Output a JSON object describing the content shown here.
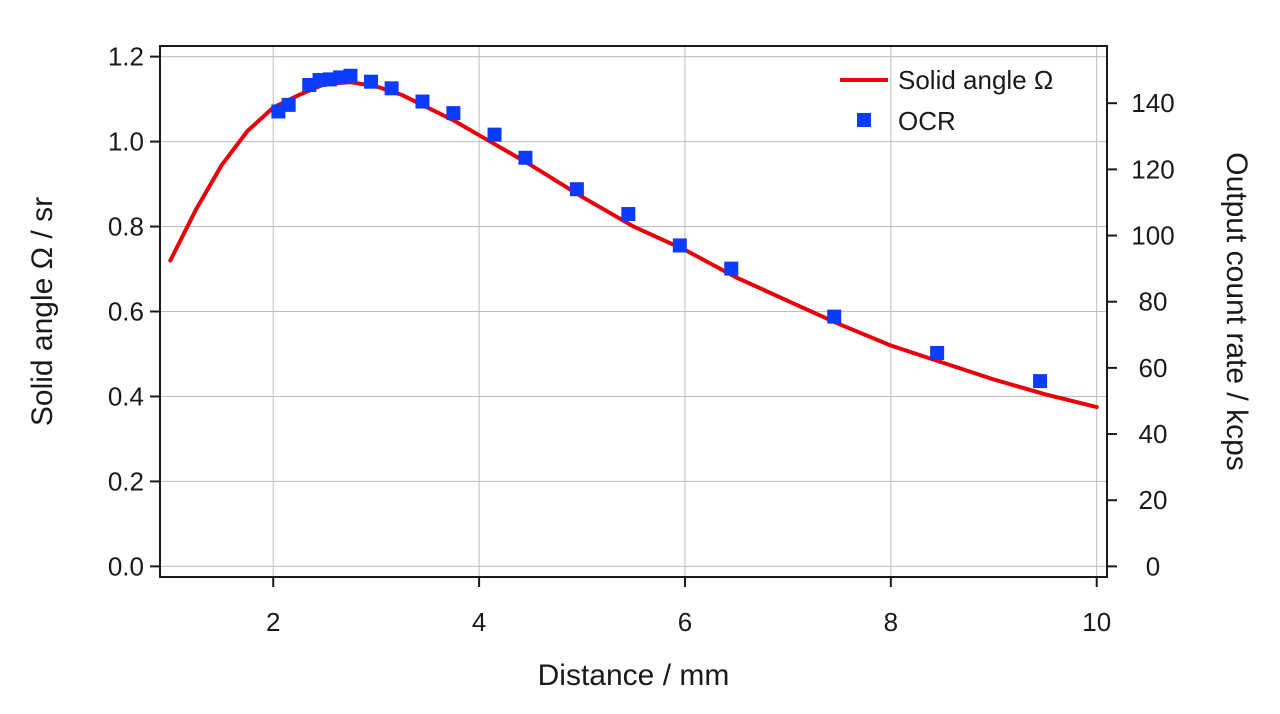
{
  "chart_data": {
    "type": "line",
    "xlabel": "Distance / mm",
    "ylabel": "Solid angle Ω / sr",
    "y2label": "Output count rate / kcps",
    "xlim": [
      0.9,
      10.1
    ],
    "ylim": [
      -0.025,
      1.225
    ],
    "y2lim": [
      -3.21,
      157.29
    ],
    "x_ticks": [
      2,
      4,
      6,
      8,
      10
    ],
    "y_ticks": [
      0.0,
      0.2,
      0.4,
      0.6,
      0.8,
      1.0,
      1.2
    ],
    "y_tick_labels": [
      "0.0",
      "0.2",
      "0.4",
      "0.6",
      "0.8",
      "1.0",
      "1.2"
    ],
    "y2_ticks": [
      0,
      20,
      40,
      60,
      80,
      100,
      120,
      140
    ],
    "grid": true,
    "legend_position": "top-right",
    "series": [
      {
        "name": "Solid angle Ω",
        "kind": "line",
        "axis": "left",
        "color": "#e8000b",
        "x": [
          1.0,
          1.25,
          1.5,
          1.75,
          2.0,
          2.25,
          2.5,
          2.75,
          3.0,
          3.25,
          3.5,
          3.75,
          4.0,
          4.5,
          5.0,
          5.5,
          6.0,
          6.5,
          7.0,
          7.5,
          8.0,
          8.5,
          9.0,
          9.5,
          10.0
        ],
        "y": [
          0.72,
          0.84,
          0.945,
          1.025,
          1.08,
          1.11,
          1.135,
          1.14,
          1.13,
          1.11,
          1.08,
          1.05,
          1.015,
          0.945,
          0.87,
          0.8,
          0.745,
          0.68,
          0.625,
          0.57,
          0.52,
          0.48,
          0.44,
          0.405,
          0.375
        ]
      },
      {
        "name": "OCR",
        "kind": "scatter",
        "axis": "right",
        "marker": "square",
        "color": "#0a3cff",
        "x": [
          2.05,
          2.15,
          2.35,
          2.45,
          2.55,
          2.65,
          2.75,
          2.95,
          3.15,
          3.45,
          3.75,
          4.15,
          4.45,
          4.95,
          5.45,
          5.95,
          6.45,
          7.45,
          8.45,
          9.45
        ],
        "y": [
          137.5,
          139.5,
          145.5,
          147,
          147.2,
          147.8,
          148.3,
          146.5,
          144.5,
          140.5,
          137,
          130.5,
          123.5,
          114,
          106.5,
          97,
          90,
          75.5,
          64.5,
          56
        ]
      }
    ]
  }
}
